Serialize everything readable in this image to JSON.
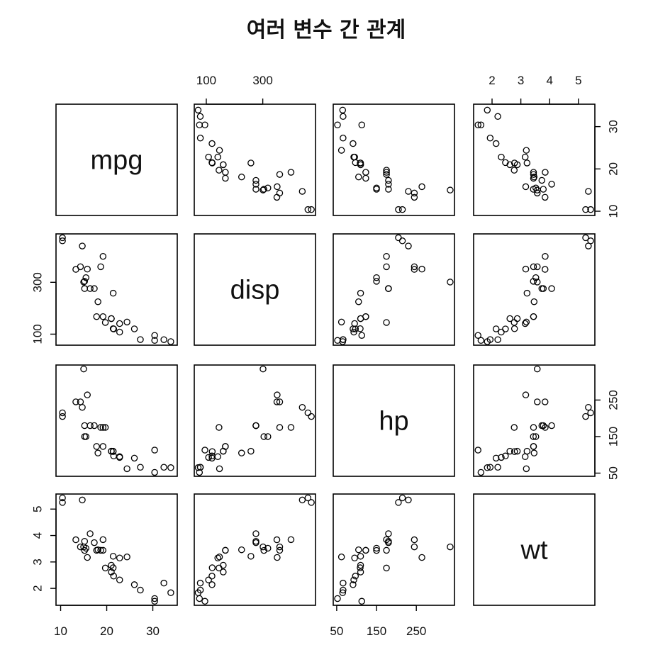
{
  "chart_data": {
    "type": "scatter",
    "title": "여러 변수 간 관계",
    "variables": [
      "mpg",
      "disp",
      "hp",
      "wt"
    ],
    "axes": {
      "mpg": {
        "lim": [
          9.0,
          35.3
        ],
        "ticks": [
          10,
          20,
          30
        ],
        "tick_labels": [
          "10",
          "20",
          "30"
        ]
      },
      "disp": {
        "lim": [
          57.4,
          486.8
        ],
        "ticks": [
          100,
          300
        ],
        "tick_labels": [
          "100",
          "300"
        ]
      },
      "hp": {
        "lim": [
          41.3,
          345.8
        ],
        "ticks": [
          50,
          150,
          250
        ],
        "tick_labels": [
          "50",
          "150",
          "250"
        ]
      },
      "wt": {
        "lim": [
          1.36,
          5.57
        ],
        "ticks": [
          2,
          3,
          4,
          5
        ],
        "tick_labels": [
          "2",
          "3",
          "4",
          "5"
        ]
      }
    },
    "observations": [
      {
        "mpg": 21.0,
        "disp": 160.0,
        "hp": 110,
        "wt": 2.62
      },
      {
        "mpg": 21.0,
        "disp": 160.0,
        "hp": 110,
        "wt": 2.875
      },
      {
        "mpg": 22.8,
        "disp": 108.0,
        "hp": 93,
        "wt": 2.32
      },
      {
        "mpg": 21.4,
        "disp": 258.0,
        "hp": 110,
        "wt": 3.215
      },
      {
        "mpg": 18.7,
        "disp": 360.0,
        "hp": 175,
        "wt": 3.44
      },
      {
        "mpg": 18.1,
        "disp": 225.0,
        "hp": 105,
        "wt": 3.46
      },
      {
        "mpg": 14.3,
        "disp": 360.0,
        "hp": 245,
        "wt": 3.57
      },
      {
        "mpg": 24.4,
        "disp": 146.7,
        "hp": 62,
        "wt": 3.19
      },
      {
        "mpg": 22.8,
        "disp": 140.8,
        "hp": 95,
        "wt": 3.15
      },
      {
        "mpg": 19.2,
        "disp": 167.6,
        "hp": 123,
        "wt": 3.44
      },
      {
        "mpg": 17.8,
        "disp": 167.6,
        "hp": 123,
        "wt": 3.44
      },
      {
        "mpg": 16.4,
        "disp": 275.8,
        "hp": 180,
        "wt": 4.07
      },
      {
        "mpg": 17.3,
        "disp": 275.8,
        "hp": 180,
        "wt": 3.73
      },
      {
        "mpg": 15.2,
        "disp": 275.8,
        "hp": 180,
        "wt": 3.78
      },
      {
        "mpg": 10.4,
        "disp": 472.0,
        "hp": 205,
        "wt": 5.25
      },
      {
        "mpg": 10.4,
        "disp": 460.0,
        "hp": 215,
        "wt": 5.424
      },
      {
        "mpg": 14.7,
        "disp": 440.0,
        "hp": 230,
        "wt": 5.345
      },
      {
        "mpg": 32.4,
        "disp": 78.7,
        "hp": 66,
        "wt": 2.2
      },
      {
        "mpg": 30.4,
        "disp": 75.7,
        "hp": 52,
        "wt": 1.615
      },
      {
        "mpg": 33.9,
        "disp": 71.1,
        "hp": 65,
        "wt": 1.835
      },
      {
        "mpg": 21.5,
        "disp": 120.1,
        "hp": 97,
        "wt": 2.465
      },
      {
        "mpg": 15.5,
        "disp": 318.0,
        "hp": 150,
        "wt": 3.52
      },
      {
        "mpg": 15.2,
        "disp": 304.0,
        "hp": 150,
        "wt": 3.435
      },
      {
        "mpg": 13.3,
        "disp": 350.0,
        "hp": 245,
        "wt": 3.84
      },
      {
        "mpg": 19.2,
        "disp": 400.0,
        "hp": 175,
        "wt": 3.845
      },
      {
        "mpg": 27.3,
        "disp": 79.0,
        "hp": 66,
        "wt": 1.935
      },
      {
        "mpg": 26.0,
        "disp": 120.3,
        "hp": 91,
        "wt": 2.14
      },
      {
        "mpg": 30.4,
        "disp": 95.1,
        "hp": 113,
        "wt": 1.513
      },
      {
        "mpg": 15.8,
        "disp": 351.0,
        "hp": 264,
        "wt": 3.17
      },
      {
        "mpg": 19.7,
        "disp": 145.0,
        "hp": 175,
        "wt": 2.77
      },
      {
        "mpg": 15.0,
        "disp": 301.0,
        "hp": 335,
        "wt": 3.57
      },
      {
        "mpg": 21.4,
        "disp": 121.0,
        "hp": 109,
        "wt": 2.78
      }
    ],
    "grid": false,
    "legend": "none"
  }
}
